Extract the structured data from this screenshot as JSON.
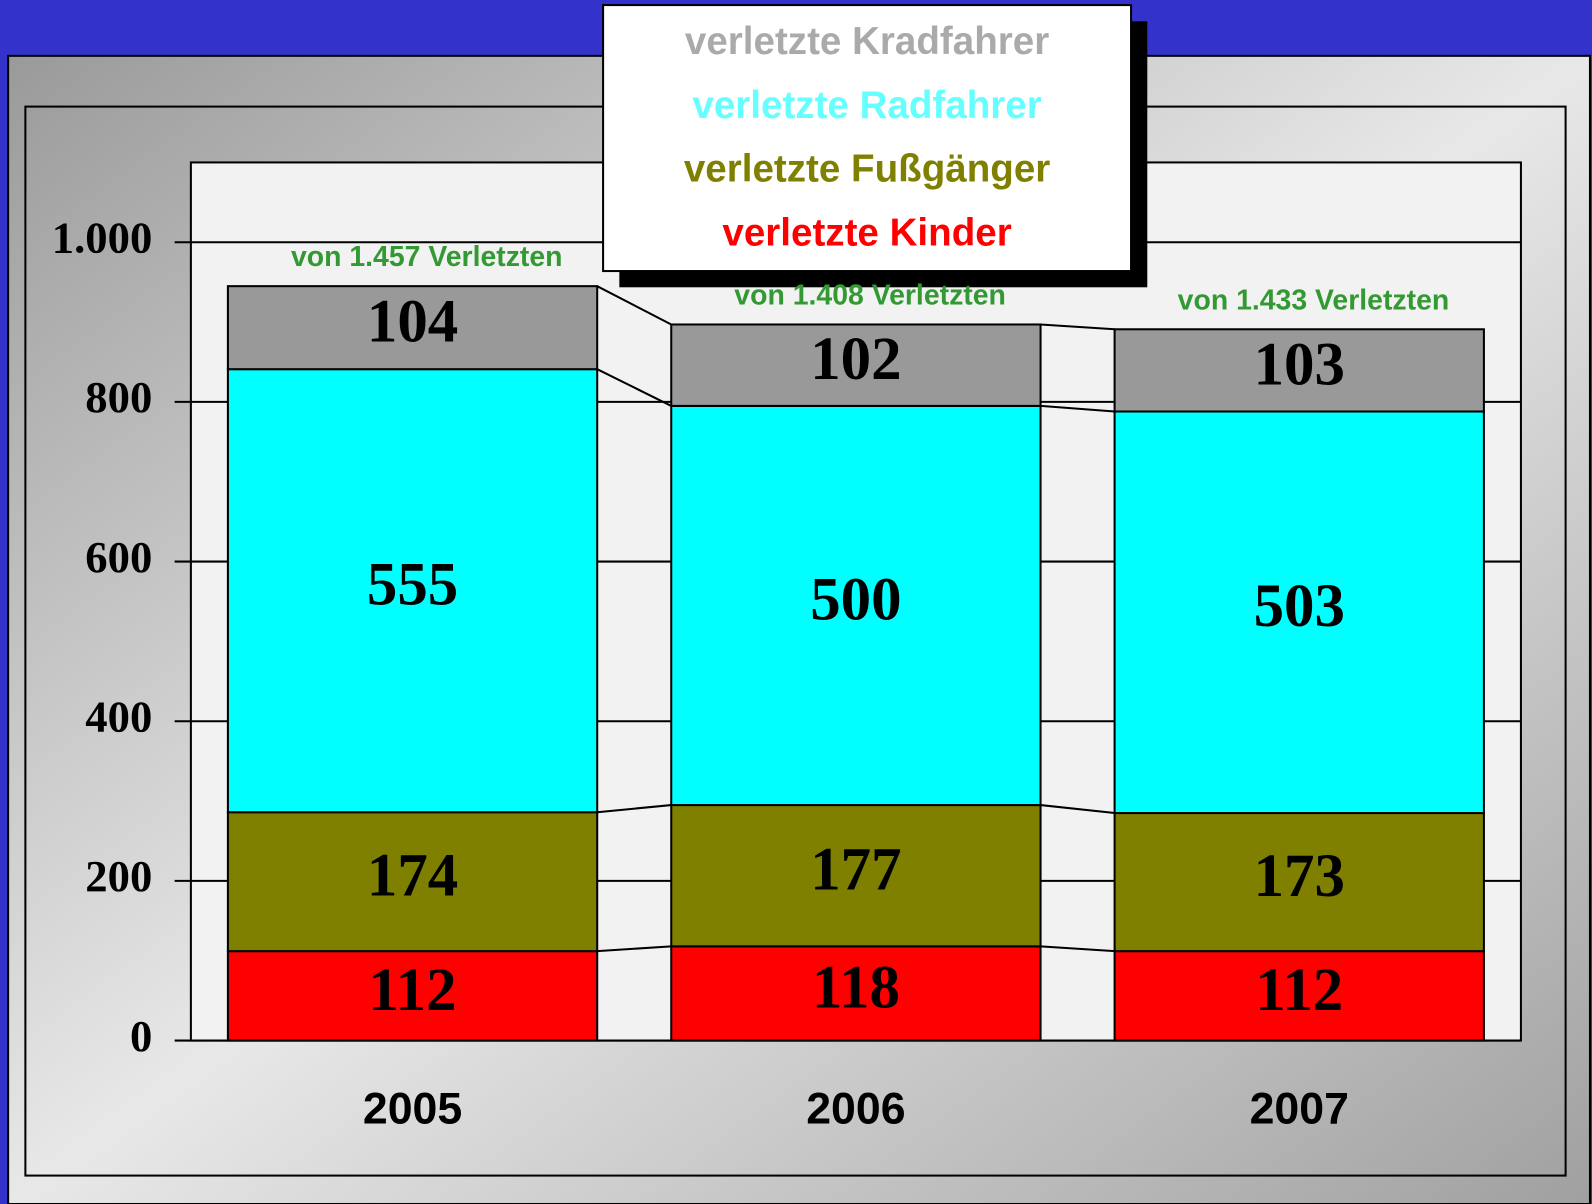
{
  "chart_data": {
    "type": "stacked_bar",
    "categories": [
      "2005",
      "2006",
      "2007"
    ],
    "series": [
      {
        "name": "verletzte Kinder",
        "color": "#ff0000",
        "legend_color": "#ff0000",
        "values": [
          112,
          118,
          112
        ]
      },
      {
        "name": "verletzte Fußgänger",
        "color": "#808000",
        "legend_color": "#808000",
        "values": [
          174,
          177,
          173
        ]
      },
      {
        "name": "verletzte Radfahrer",
        "color": "#00ffff",
        "legend_color": "#66ffff",
        "values": [
          555,
          500,
          503
        ]
      },
      {
        "name": "verletzte Kradfahrer",
        "color": "#999999",
        "legend_color": "#aaaaaa",
        "values": [
          104,
          102,
          103
        ]
      }
    ],
    "annotations": [
      "von 1.457 Verletzten",
      "von 1.408 Verletzten",
      "von 1.433 Verletzten"
    ],
    "ylim": [
      0,
      1100
    ],
    "yticks": [
      0,
      200,
      400,
      600,
      800,
      {
        "value": 1000,
        "label": "1.000"
      }
    ],
    "grid": true
  }
}
